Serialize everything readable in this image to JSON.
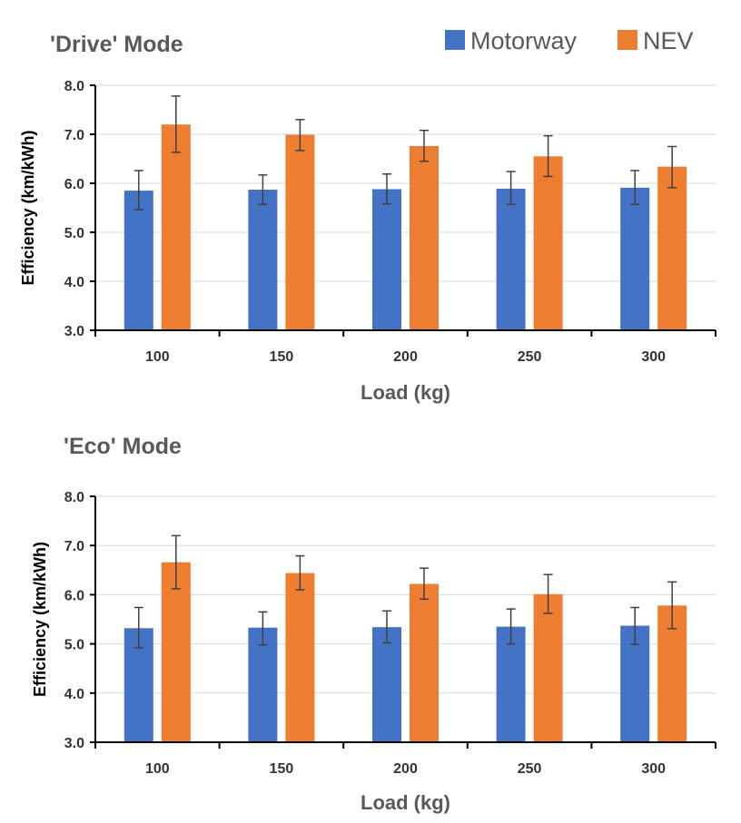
{
  "legend": {
    "items": [
      {
        "label": "Motorway",
        "color": "#4472C4"
      },
      {
        "label": "NEV",
        "color": "#ED7D31"
      }
    ]
  },
  "chart_data": [
    {
      "type": "bar",
      "title": "'Drive' Mode",
      "xlabel": "Load  (kg)",
      "ylabel": "Efficiency  (km/kWh)",
      "ylim": [
        3.0,
        8.0
      ],
      "yticks": [
        "3.0",
        "4.0",
        "5.0",
        "6.0",
        "7.0",
        "8.0"
      ],
      "categories": [
        "100",
        "150",
        "200",
        "250",
        "300"
      ],
      "grid": true,
      "error_bars": true,
      "series": [
        {
          "name": "Motorway",
          "color": "#4472C4",
          "values": [
            5.85,
            5.87,
            5.88,
            5.89,
            5.91
          ],
          "err_low": [
            5.46,
            5.57,
            5.58,
            5.57,
            5.57
          ],
          "err_high": [
            6.26,
            6.17,
            6.19,
            6.24,
            6.26
          ]
        },
        {
          "name": "NEV",
          "color": "#ED7D31",
          "values": [
            7.2,
            6.99,
            6.76,
            6.55,
            6.34
          ],
          "err_low": [
            6.63,
            6.67,
            6.45,
            6.14,
            5.91
          ],
          "err_high": [
            7.78,
            7.3,
            7.08,
            6.97,
            6.75
          ]
        }
      ]
    },
    {
      "type": "bar",
      "title": "'Eco' Mode",
      "xlabel": "Load  (kg)",
      "ylabel": "Efficiency  (km/kWh)",
      "ylim": [
        3.0,
        8.0
      ],
      "yticks": [
        "3.0",
        "4.0",
        "5.0",
        "6.0",
        "7.0",
        "8.0"
      ],
      "categories": [
        "100",
        "150",
        "200",
        "250",
        "300"
      ],
      "grid": true,
      "error_bars": true,
      "series": [
        {
          "name": "Motorway",
          "color": "#4472C4",
          "values": [
            5.32,
            5.33,
            5.34,
            5.35,
            5.37
          ],
          "err_low": [
            4.92,
            4.98,
            5.02,
            5.0,
            4.99
          ],
          "err_high": [
            5.74,
            5.65,
            5.67,
            5.71,
            5.74
          ]
        },
        {
          "name": "NEV",
          "color": "#ED7D31",
          "values": [
            6.66,
            6.44,
            6.22,
            6.01,
            5.78
          ],
          "err_low": [
            6.12,
            6.1,
            5.91,
            5.62,
            5.31
          ],
          "err_high": [
            7.2,
            6.79,
            6.54,
            6.41,
            6.26
          ]
        }
      ]
    }
  ]
}
